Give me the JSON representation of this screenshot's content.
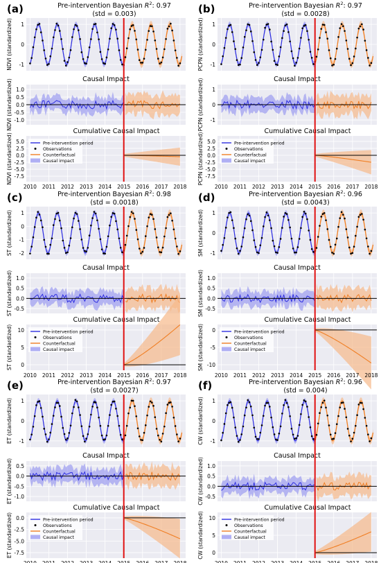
{
  "figure": {
    "x_ticks": [
      "2010",
      "2011",
      "2012",
      "2013",
      "2014",
      "2015",
      "2016",
      "2017",
      "2018"
    ],
    "intervention_year": 2015,
    "colors": {
      "pre": "#2f2fe0",
      "pre_band": "#8f8ff0",
      "counterfactual": "#f07e23",
      "cf_band": "#f6b98a",
      "observations": "#000000",
      "intervention": "#e01010",
      "zero_line": "#000000",
      "plot_bg": "#ebebf2",
      "grid": "#ffffff"
    },
    "legend_labels": [
      "Pre-intervention period",
      "Observations",
      "Counterfactual",
      "Causal impact"
    ],
    "causal_impact_title": "Causal Impact",
    "cumulative_title": "Cumulative Causal Impact"
  },
  "chart_data": [
    {
      "type": "line",
      "panel_label": "(a)",
      "var": "NDVI",
      "ylabel": "NDVI (standardized)",
      "title_prefix": "Pre-intervention Bayesian ",
      "title_r2": "0.97",
      "title_std": "(std = 0.003)",
      "top_yticks": [
        "1",
        "0",
        "-1"
      ],
      "mid_yticks": [
        "1.0",
        "0.5",
        "0.0",
        "-0.5",
        "-1.0"
      ],
      "bot_yticks": [
        "5.0",
        "2.5",
        "0.0",
        "-2.5",
        "-5.0",
        "-7.5"
      ],
      "cumulative_end": -0.5
    },
    {
      "type": "line",
      "panel_label": "(b)",
      "var": "PCPN",
      "ylabel": "PCPN (standardized)",
      "title_prefix": "Pre-intervention Bayesian ",
      "title_r2": "0.97",
      "title_std": "(std = 0.0028)",
      "top_yticks": [
        "1",
        "0",
        "-1"
      ],
      "mid_yticks": [
        "1",
        "0",
        "-1"
      ],
      "bot_yticks": [
        "5.0",
        "2.5",
        "0.0",
        "-2.5",
        "-5.0",
        "-7.5"
      ],
      "cumulative_end": -2.5
    },
    {
      "type": "line",
      "panel_label": "(c)",
      "var": "ST",
      "ylabel": "ST (standardized)",
      "title_prefix": "Pre-intervention Bayesian ",
      "title_r2": "0.98",
      "title_std": "(std = 0.0018)",
      "top_yticks": [
        "1",
        "0",
        "-1",
        "-2"
      ],
      "mid_yticks": [
        "1.0",
        "0.5",
        "0.0",
        "-0.5"
      ],
      "bot_yticks": [
        "10",
        "5",
        "0"
      ],
      "cumulative_end": 11.5
    },
    {
      "type": "line",
      "panel_label": "(d)",
      "var": "SM",
      "ylabel": "SM (standardized)",
      "title_prefix": "Pre-intervention Bayesian ",
      "title_r2": "0.96",
      "title_std": "(std = 0.0043)",
      "top_yticks": [
        "1",
        "0",
        "-1"
      ],
      "mid_yticks": [
        "1.0",
        "0.5",
        "0.0",
        "-0.5"
      ],
      "bot_yticks": [
        "0",
        "-5",
        "-10"
      ],
      "cumulative_end": -9.5
    },
    {
      "type": "line",
      "panel_label": "(e)",
      "var": "ET",
      "ylabel": "ET (standardized)",
      "title_prefix": "Pre-intervention Bayesian ",
      "title_r2": "0.97",
      "title_std": "(std = 0.0027)",
      "top_yticks": [
        "1",
        "0",
        "-1"
      ],
      "mid_yticks": [
        "0.5",
        "0.0",
        "-0.5",
        "-1.0"
      ],
      "bot_yticks": [
        "0.0",
        "-2.5",
        "-5.0",
        "-7.5"
      ],
      "cumulative_end": -4.5
    },
    {
      "type": "line",
      "panel_label": "(f)",
      "var": "CW",
      "ylabel": "CW (standardized)",
      "title_prefix": "Pre-intervention Bayesian ",
      "title_r2": "0.96",
      "title_std": "(std = 0.004)",
      "top_yticks": [
        "1",
        "0",
        "-1"
      ],
      "mid_yticks": [
        "1.0",
        "0.5",
        "0.0",
        "-0.5"
      ],
      "bot_yticks": [
        "10",
        "5",
        "0"
      ],
      "cumulative_end": 6
    }
  ]
}
